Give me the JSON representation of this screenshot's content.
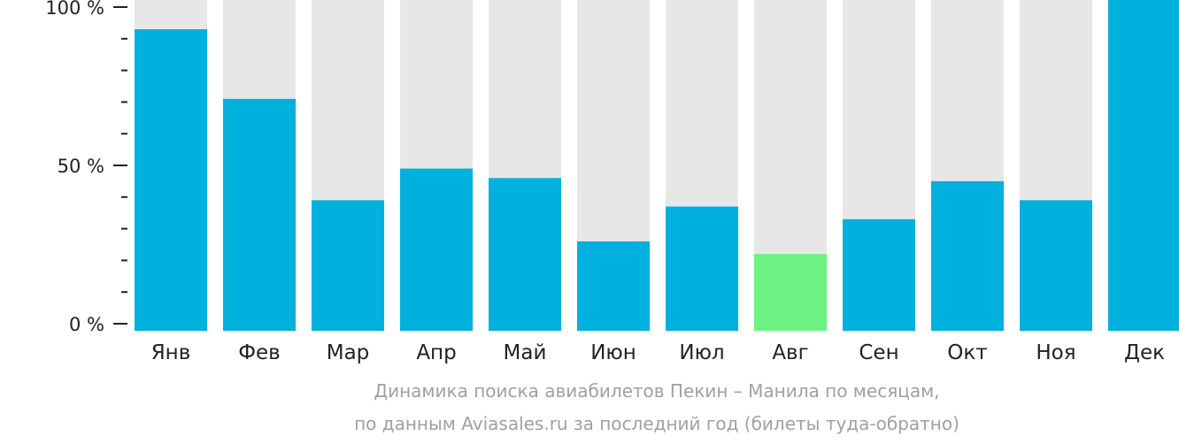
{
  "chart_data": {
    "type": "bar",
    "categories": [
      "Янв",
      "Фев",
      "Мар",
      "Апр",
      "Май",
      "Июн",
      "Июл",
      "Авг",
      "Сен",
      "Окт",
      "Ноя",
      "Дек"
    ],
    "values": [
      93,
      71,
      39,
      49,
      46,
      26,
      37,
      22,
      33,
      45,
      39,
      100
    ],
    "highlight_index": 7,
    "ylim": [
      0,
      100
    ],
    "y_tick_labels": [
      "100 %",
      "50 %",
      "0 %"
    ],
    "y_tick_values": [
      100,
      50,
      0
    ],
    "y_minor_step": 10,
    "caption_line1": "Динамика поиска авиабилетов Пекин – Манила по месяцам,",
    "caption_line2": "по данным Aviasales.ru за последний год (билеты туда-обратно)"
  },
  "colors": {
    "bar": "#00b0dd",
    "highlight": "#6cf383",
    "track": "#e7e7e7",
    "axis": "#222222",
    "caption": "#a0a0a0"
  }
}
